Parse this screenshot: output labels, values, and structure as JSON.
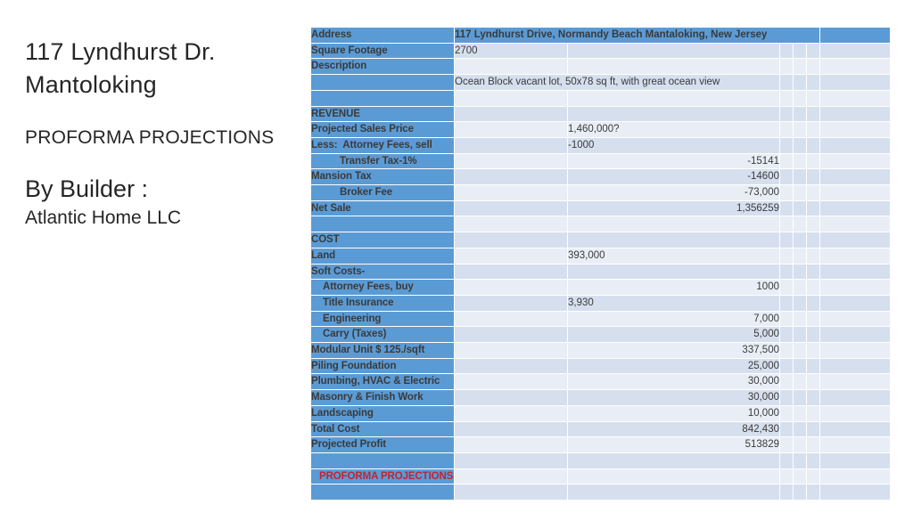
{
  "slide": {
    "title_line1": "117 Lyndhurst Dr.",
    "title_line2": "Mantoloking",
    "subtitle": "PROFORMA PROJECTIONS",
    "byline": "By Builder :",
    "builder": "Atlantic Home LLC"
  },
  "colors": {
    "header_blue": "#5b9bd5",
    "band_dark": "#d6dfee",
    "band_light": "#e9eef6",
    "label_text": "#ffffff",
    "value_text": "#3a3a3a",
    "accent_red": "#c42330",
    "slide_text": "#262626"
  },
  "table": {
    "rows": [
      {
        "label": "Address",
        "type": "address",
        "value": "117 Lyndhurst Drive, Normandy Beach Mantaloking, New Jersey"
      },
      {
        "label": "Square Footage",
        "value": "2700",
        "col": "b",
        "align": "left",
        "band": "dark"
      },
      {
        "label": "Description",
        "band": "light"
      },
      {
        "label": "",
        "value": "Ocean Block vacant lot, 50x78 sq ft, with great ocean view",
        "col": "b",
        "span": 2,
        "align": "left",
        "band": "dark"
      },
      {
        "label": "",
        "band": "light"
      },
      {
        "label": "REVENUE",
        "band": "dark"
      },
      {
        "label": "Projected Sales Price",
        "value": "1,460,000?",
        "col": "c",
        "align": "left",
        "band": "light"
      },
      {
        "label": "Less:  Attorney Fees, sell",
        "value": "-1000",
        "col": "c",
        "align": "left",
        "band": "dark"
      },
      {
        "label": "Transfer Tax-1%",
        "indent": 2,
        "value": "-15141",
        "col": "c",
        "align": "right",
        "band": "light"
      },
      {
        "label": "Mansion Tax",
        "value": "-14600",
        "col": "c",
        "align": "right",
        "band": "dark"
      },
      {
        "label": "Broker Fee",
        "indent": 2,
        "value": "-73,000",
        "col": "c",
        "align": "right",
        "band": "light"
      },
      {
        "label": "Net Sale",
        "value": "1,356259",
        "col": "c",
        "align": "right",
        "band": "dark"
      },
      {
        "label": "",
        "band": "light"
      },
      {
        "label": "COST",
        "band": "dark"
      },
      {
        "label": "Land",
        "value": "393,000",
        "col": "c",
        "align": "left",
        "band": "light"
      },
      {
        "label": "Soft Costs-",
        "band": "dark"
      },
      {
        "label": "Attorney Fees, buy",
        "indent": 1,
        "value": "1000",
        "col": "c",
        "align": "right",
        "band": "light"
      },
      {
        "label": "Title Insurance",
        "indent": 1,
        "value": "3,930",
        "col": "c",
        "align": "left",
        "band": "dark"
      },
      {
        "label": "Engineering",
        "indent": 1,
        "value": "7,000",
        "col": "c",
        "align": "right",
        "band": "light"
      },
      {
        "label": "Carry (Taxes)",
        "indent": 1,
        "value": "5,000",
        "col": "c",
        "align": "right",
        "band": "dark"
      },
      {
        "label": "Modular Unit $ 125./sqft",
        "value": "337,500",
        "col": "c",
        "align": "right",
        "band": "light"
      },
      {
        "label": "Piling Foundation",
        "value": "25,000",
        "col": "c",
        "align": "right",
        "band": "dark"
      },
      {
        "label": "Plumbing, HVAC & Electric",
        "value": "30,000",
        "col": "c",
        "align": "right",
        "band": "light"
      },
      {
        "label": "Masonry & Finish Work",
        "value": "30,000",
        "col": "c",
        "align": "right",
        "band": "dark"
      },
      {
        "label": "Landscaping",
        "value": "10,000",
        "col": "c",
        "align": "right",
        "band": "light"
      },
      {
        "label": "Total Cost",
        "value": "842,430",
        "col": "c",
        "align": "right",
        "band": "dark"
      },
      {
        "label": "Projected Profit",
        "value": "513829",
        "col": "c",
        "align": "right",
        "band": "light"
      },
      {
        "label": "",
        "band": "dark"
      },
      {
        "label": "PROFORMA PROJECTIONS",
        "label_red": true,
        "band": "light"
      },
      {
        "label": "",
        "band": "dark"
      }
    ]
  }
}
